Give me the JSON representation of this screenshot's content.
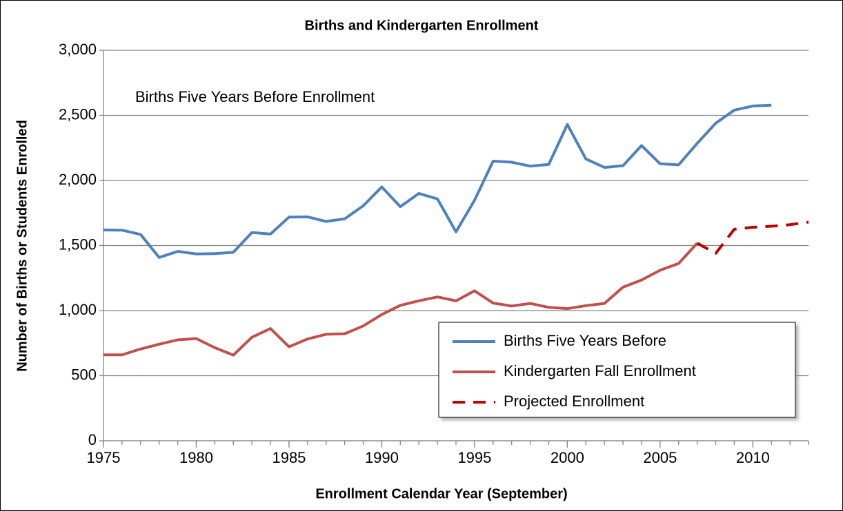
{
  "chart_data": {
    "type": "line",
    "title": "Births and Kindergarten Enrollment",
    "xlabel": "Enrollment Calendar Year (September)",
    "ylabel": "Number of Births or Students Enrolled",
    "annotation": "Births Five Years Before Enrollment",
    "x": [
      1975,
      1976,
      1977,
      1978,
      1979,
      1980,
      1981,
      1982,
      1983,
      1984,
      1985,
      1986,
      1987,
      1988,
      1989,
      1990,
      1991,
      1992,
      1993,
      1994,
      1995,
      1996,
      1997,
      1998,
      1999,
      2000,
      2001,
      2002,
      2003,
      2004,
      2005,
      2006,
      2007,
      2008,
      2009,
      2010,
      2011,
      2012,
      2013
    ],
    "series": [
      {
        "name": "Births Five Years Before",
        "color": "#4f81bd",
        "style": "solid",
        "values": [
          1620,
          1618,
          1585,
          1408,
          1455,
          1435,
          1438,
          1448,
          1600,
          1588,
          1718,
          1720,
          1685,
          1705,
          1805,
          1950,
          1798,
          1900,
          1858,
          1605,
          1848,
          2148,
          2140,
          2110,
          2123,
          2430,
          2165,
          2100,
          2113,
          2268,
          2128,
          2120,
          2285,
          2440,
          2540,
          2572,
          2578,
          null,
          null
        ]
      },
      {
        "name": "Kindergarten Fall Enrollment",
        "color": "#c0504d",
        "style": "solid",
        "values": [
          660,
          660,
          705,
          742,
          775,
          785,
          715,
          658,
          795,
          862,
          722,
          782,
          818,
          822,
          882,
          970,
          1040,
          1075,
          1105,
          1075,
          1152,
          1058,
          1035,
          1055,
          1025,
          1015,
          1038,
          1055,
          1180,
          1235,
          1310,
          1362,
          1518,
          null,
          null,
          null,
          null,
          null,
          null
        ]
      },
      {
        "name": "Projected Enrollment",
        "color": "#c00000",
        "style": "dashed",
        "values": [
          null,
          null,
          null,
          null,
          null,
          null,
          null,
          null,
          null,
          null,
          null,
          null,
          null,
          null,
          null,
          null,
          null,
          null,
          null,
          null,
          null,
          null,
          null,
          null,
          null,
          null,
          null,
          null,
          null,
          null,
          null,
          null,
          1518,
          1440,
          1625,
          1640,
          1648,
          1660,
          1680
        ]
      }
    ],
    "xlim": [
      1975,
      2013
    ],
    "xticks": [
      1975,
      1980,
      1985,
      1990,
      1995,
      2000,
      2005,
      2010
    ],
    "ylim": [
      0,
      3000
    ],
    "yticks": [
      0,
      500,
      {
        "value": 1000,
        "label": "1,000"
      },
      {
        "value": 1500,
        "label": "1,500"
      },
      {
        "value": 2000,
        "label": "2,000"
      },
      {
        "value": 2500,
        "label": "2,500"
      },
      {
        "value": 3000,
        "label": "3,000"
      }
    ],
    "grid": true,
    "legend": "lower right"
  }
}
